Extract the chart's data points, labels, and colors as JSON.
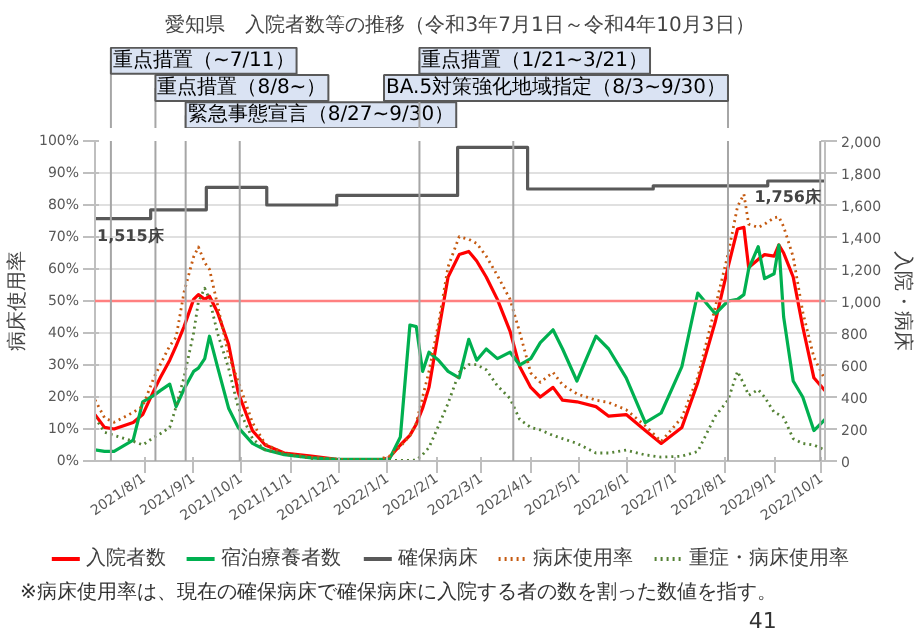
{
  "chart_data": {
    "type": "line",
    "title": "愛知県　入院者数等の推移（令和3年7月1日～令和4年10月3日）",
    "ylabel": "病床使用率",
    "y2label": "入院・病床",
    "x": [
      "2021-07-01",
      "2021-07-07",
      "2021-07-13",
      "2021-07-25",
      "2021-07-31",
      "2021-08-07",
      "2021-08-11",
      "2021-08-17",
      "2021-08-21",
      "2021-08-26",
      "2021-09-01",
      "2021-09-04",
      "2021-09-08",
      "2021-09-11",
      "2021-09-16",
      "2021-09-23",
      "2021-09-29",
      "2021-10-08",
      "2021-10-16",
      "2021-10-28",
      "2021-11-14",
      "2021-11-30",
      "2021-12-25",
      "2022-01-02",
      "2022-01-09",
      "2022-01-15",
      "2022-01-19",
      "2022-01-23",
      "2022-01-27",
      "2022-02-02",
      "2022-02-08",
      "2022-02-15",
      "2022-02-21",
      "2022-02-26",
      "2022-03-04",
      "2022-03-11",
      "2022-03-19",
      "2022-03-25",
      "2022-04-01",
      "2022-04-07",
      "2022-04-15",
      "2022-04-21",
      "2022-04-30",
      "2022-05-12",
      "2022-05-20",
      "2022-05-31",
      "2022-06-12",
      "2022-06-22",
      "2022-07-05",
      "2022-07-15",
      "2022-07-26",
      "2022-08-03",
      "2022-08-09",
      "2022-08-13",
      "2022-08-16",
      "2022-08-22",
      "2022-08-26",
      "2022-09-01",
      "2022-09-04",
      "2022-09-07",
      "2022-09-13",
      "2022-09-19",
      "2022-09-26",
      "2022-10-03"
    ],
    "series": [
      {
        "name": "入院者数",
        "color": "#ff0000",
        "axis": "y2",
        "line_style": "solid",
        "values": [
          290,
          210,
          200,
          240,
          290,
          440,
          520,
          630,
          720,
          840,
          1010,
          1040,
          1010,
          1030,
          930,
          730,
          430,
          190,
          100,
          50,
          30,
          10,
          0,
          20,
          100,
          160,
          230,
          330,
          460,
          810,
          1150,
          1290,
          1310,
          1250,
          1150,
          1010,
          810,
          590,
          460,
          400,
          460,
          380,
          370,
          340,
          280,
          290,
          190,
          110,
          210,
          490,
          870,
          1210,
          1450,
          1460,
          1210,
          1260,
          1290,
          1280,
          1350,
          1300,
          1150,
          840,
          520,
          440
        ]
      },
      {
        "name": "宿泊療養者数",
        "color": "#00b050",
        "axis": "y2",
        "line_style": "solid",
        "values": [
          70,
          60,
          60,
          130,
          370,
          410,
          440,
          480,
          340,
          450,
          560,
          580,
          640,
          780,
          590,
          330,
          210,
          110,
          70,
          40,
          20,
          10,
          10,
          10,
          150,
          850,
          840,
          560,
          680,
          630,
          560,
          520,
          760,
          630,
          700,
          640,
          680,
          600,
          640,
          740,
          820,
          700,
          500,
          780,
          700,
          520,
          240,
          300,
          590,
          1050,
          920,
          1000,
          1010,
          1040,
          1200,
          1340,
          1140,
          1170,
          1350,
          900,
          500,
          400,
          190,
          260
        ]
      },
      {
        "name": "確保病床",
        "color": "#595959",
        "axis": "y2",
        "type": "step",
        "line_style": "solid",
        "x": [
          "2021-07-01",
          "2021-08-05",
          "2021-09-09",
          "2021-10-17",
          "2021-11-30",
          "2022-02-14",
          "2022-03-30",
          "2022-06-17",
          "2022-08-28",
          "2022-10-03"
        ],
        "values": [
          1515,
          1570,
          1710,
          1600,
          1660,
          1960,
          1700,
          1720,
          1750,
          1756
        ]
      },
      {
        "name": "病床使用率",
        "color": "#c55a11",
        "axis": "y",
        "line_style": "dotted",
        "values": [
          19.1,
          13.5,
          12.1,
          15.2,
          17.1,
          26,
          30.1,
          36,
          38.7,
          52.8,
          63.8,
          66.9,
          62,
          59.9,
          48.9,
          33,
          25,
          12,
          5.3,
          2.4,
          1.2,
          0.5,
          0.3,
          1.5,
          4.5,
          8,
          11.8,
          20,
          28,
          43,
          60.7,
          70.1,
          69.3,
          68,
          64,
          58,
          50.5,
          40.3,
          27.5,
          24.6,
          27.7,
          23.8,
          21,
          19,
          18.3,
          16,
          11,
          6.1,
          13.6,
          26.2,
          48.1,
          64.6,
          79.5,
          83.4,
          74,
          73,
          74,
          76,
          76.3,
          73.2,
          63.8,
          46.6,
          32.4,
          25.4
        ]
      },
      {
        "name": "重症・病床使用率",
        "color": "#548235",
        "axis": "y",
        "line_style": "dotted",
        "values": [
          13.6,
          9,
          8,
          6.2,
          5,
          7.4,
          8.5,
          10.5,
          17,
          26.2,
          40,
          49.7,
          54,
          50.5,
          40,
          29,
          16.8,
          7,
          3.5,
          2.2,
          0.8,
          0.3,
          0.2,
          0.2,
          0.2,
          0.2,
          0.3,
          2,
          4.2,
          11,
          18,
          27.7,
          30.1,
          30.1,
          28.5,
          23.5,
          19.5,
          13,
          10.5,
          9.7,
          8,
          7,
          5.5,
          2.5,
          2.5,
          3.4,
          1.9,
          1.2,
          1.5,
          3,
          14,
          19,
          28,
          24,
          20.5,
          22.3,
          20,
          15.2,
          14.5,
          13.6,
          7,
          5.5,
          5,
          3.4
        ]
      }
    ],
    "xlim": [
      "2021-07-01",
      "2022-10-03"
    ],
    "xticks": [
      {
        "value": "2021-08-01",
        "label": "2021/8/1"
      },
      {
        "value": "2021-09-01",
        "label": "2021/9/1"
      },
      {
        "value": "2021-10-01",
        "label": "2021/10/1"
      },
      {
        "value": "2021-11-01",
        "label": "2021/11/1"
      },
      {
        "value": "2021-12-01",
        "label": "2021/12/1"
      },
      {
        "value": "2022-01-01",
        "label": "2022/1/1"
      },
      {
        "value": "2022-02-01",
        "label": "2022/2/1"
      },
      {
        "value": "2022-03-01",
        "label": "2022/3/1"
      },
      {
        "value": "2022-04-01",
        "label": "2022/4/1"
      },
      {
        "value": "2022-05-01",
        "label": "2022/5/1"
      },
      {
        "value": "2022-06-01",
        "label": "2022/6/1"
      },
      {
        "value": "2022-07-01",
        "label": "2022/7/1"
      },
      {
        "value": "2022-08-01",
        "label": "2022/8/1"
      },
      {
        "value": "2022-09-01",
        "label": "2022/9/1"
      },
      {
        "value": "2022-10-01",
        "label": "2022/10/1"
      }
    ],
    "ylim": [
      0,
      100
    ],
    "yticks": [
      {
        "value": 0,
        "label": "0%"
      },
      {
        "value": 10,
        "label": "10%"
      },
      {
        "value": 20,
        "label": "20%"
      },
      {
        "value": 30,
        "label": "30%"
      },
      {
        "value": 40,
        "label": "40%"
      },
      {
        "value": 50,
        "label": "50%"
      },
      {
        "value": 60,
        "label": "60%"
      },
      {
        "value": 70,
        "label": "70%"
      },
      {
        "value": 80,
        "label": "80%"
      },
      {
        "value": 90,
        "label": "90%"
      },
      {
        "value": 100,
        "label": "100%"
      }
    ],
    "y2lim": [
      0,
      2000
    ],
    "y2ticks": [
      0,
      {
        "value": 200,
        "label": "200"
      },
      {
        "value": 400,
        "label": "400"
      },
      {
        "value": 600,
        "label": "600"
      },
      {
        "value": 800,
        "label": "800"
      },
      {
        "value": 1000,
        "label": "1,000"
      },
      {
        "value": 1200,
        "label": "1,200"
      },
      {
        "value": 1400,
        "label": "1,400"
      },
      {
        "value": 1600,
        "label": "1,600"
      },
      {
        "value": 1800,
        "label": "1,800"
      },
      {
        "value": 2000,
        "label": "2,000"
      }
    ],
    "ref_lines": [
      {
        "axis": "y",
        "value": 50,
        "color": "#ff8080"
      },
      {
        "axis": "x",
        "value": "2021-07-11",
        "label": "重点措置（~7/11）",
        "color": "#a6a6a6"
      },
      {
        "axis": "x",
        "value": "2021-08-08",
        "label": "重点措置（8/8~）",
        "color": "#a6a6a6"
      },
      {
        "axis": "x",
        "value": "2021-08-27",
        "label": "緊急事態宣言（8/27~9/30）",
        "color": "#a6a6a6"
      },
      {
        "axis": "x",
        "value": "2021-09-30",
        "color": "#a6a6a6"
      },
      {
        "axis": "x",
        "value": "2022-01-21",
        "label": "重点措置（1/21~3/21）",
        "color": "#a6a6a6"
      },
      {
        "axis": "x",
        "value": "2022-03-21",
        "color": "#a6a6a6"
      },
      {
        "axis": "x",
        "value": "2022-08-03",
        "label": "BA.5対策強化地域指定（8/3~9/30）",
        "color": "#a6a6a6"
      },
      {
        "axis": "x",
        "value": "2022-09-30",
        "color": "#a6a6a6"
      }
    ],
    "annotations": [
      "1,515床",
      "1,756床",
      "※病床使用率は、現在の確保病床で確保病床に入院する者の数を割った数値を指す。",
      "41"
    ],
    "grid": "y",
    "legend": "bottom"
  }
}
